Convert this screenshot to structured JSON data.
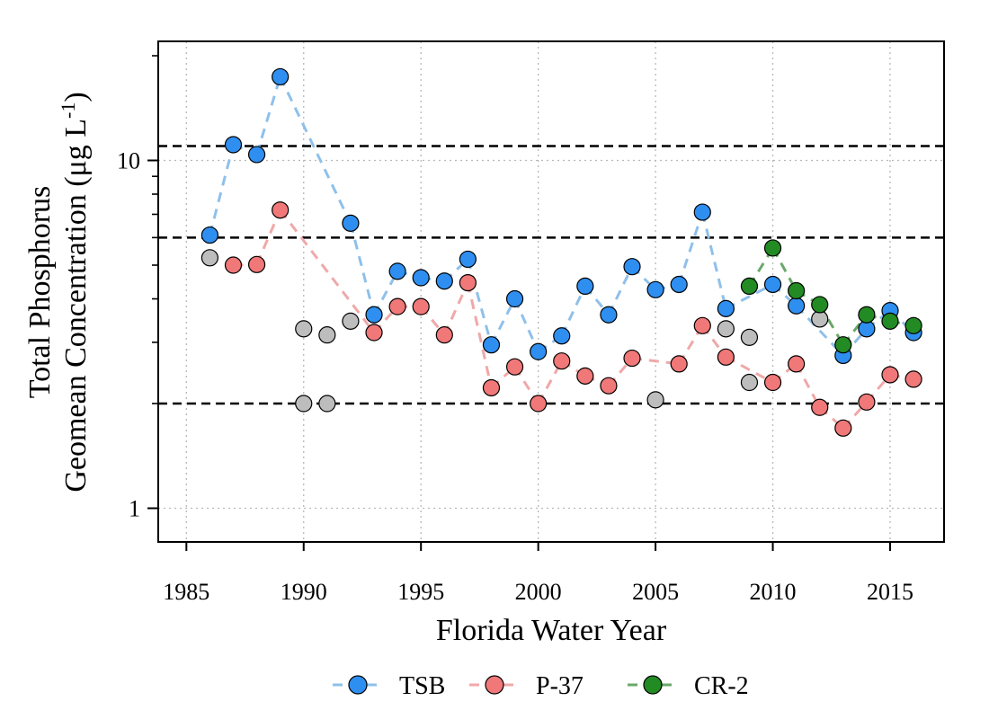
{
  "chart_data": {
    "type": "scatter",
    "x_axis": {
      "label": "Florida Water Year",
      "range": [
        1983.8,
        2017.3
      ],
      "ticks": [
        1985,
        1990,
        1995,
        2000,
        2005,
        2010,
        2015
      ],
      "tick_labels": [
        "1985",
        "1990",
        "1995",
        "2000",
        "2005",
        "2010",
        "2015"
      ]
    },
    "y_axis": {
      "label_line1": "Total Phosphorus",
      "label_line2_main": "Geomean Concentration (μg L",
      "label_line2_sup": "-1",
      "label_line2_end": ")",
      "scale": "log",
      "range": [
        0.8,
        22
      ],
      "ticks": [
        1,
        10
      ],
      "tick_labels": [
        "1",
        "10"
      ],
      "minor_ticks": [
        2,
        3,
        4,
        5,
        6,
        7,
        8,
        9,
        20
      ]
    },
    "grid": true,
    "reference_lines": [
      11,
      6,
      2
    ],
    "legend": {
      "placement": "bottom"
    },
    "series": [
      {
        "name": "TSB",
        "color": "#2f8ff0",
        "line_color": "#8fc0ea",
        "points": [
          {
            "x": 1986,
            "y": 6.1
          },
          {
            "x": 1987,
            "y": 11.1
          },
          {
            "x": 1988,
            "y": 10.4
          },
          {
            "x": 1989,
            "y": 17.4
          },
          {
            "x": 1992,
            "y": 6.6
          },
          {
            "x": 1993,
            "y": 3.6
          },
          {
            "x": 1994,
            "y": 4.8
          },
          {
            "x": 1995,
            "y": 4.6
          },
          {
            "x": 1996,
            "y": 4.5
          },
          {
            "x": 1997,
            "y": 5.2
          },
          {
            "x": 1998,
            "y": 2.95
          },
          {
            "x": 1999,
            "y": 4.0
          },
          {
            "x": 2000,
            "y": 2.82
          },
          {
            "x": 2001,
            "y": 3.13
          },
          {
            "x": 2002,
            "y": 4.35
          },
          {
            "x": 2003,
            "y": 3.6
          },
          {
            "x": 2004,
            "y": 4.95
          },
          {
            "x": 2005,
            "y": 4.25
          },
          {
            "x": 2006,
            "y": 4.4
          },
          {
            "x": 2007,
            "y": 7.1
          },
          {
            "x": 2008,
            "y": 3.75
          },
          {
            "x": 2010,
            "y": 4.4
          },
          {
            "x": 2011,
            "y": 3.82
          },
          {
            "x": 2013,
            "y": 2.75
          },
          {
            "x": 2014,
            "y": 3.28
          },
          {
            "x": 2015,
            "y": 3.7
          },
          {
            "x": 2016,
            "y": 3.2
          }
        ]
      },
      {
        "name": "P-37",
        "color": "#f07878",
        "line_color": "#f0a8a8",
        "points": [
          {
            "x": 1987,
            "y": 5.0
          },
          {
            "x": 1988,
            "y": 5.02
          },
          {
            "x": 1989,
            "y": 7.2
          },
          {
            "x": 1993,
            "y": 3.2
          },
          {
            "x": 1994,
            "y": 3.8
          },
          {
            "x": 1995,
            "y": 3.8
          },
          {
            "x": 1996,
            "y": 3.15
          },
          {
            "x": 1997,
            "y": 4.45
          },
          {
            "x": 1998,
            "y": 2.22
          },
          {
            "x": 1999,
            "y": 2.55
          },
          {
            "x": 2000,
            "y": 2.0
          },
          {
            "x": 2001,
            "y": 2.65
          },
          {
            "x": 2002,
            "y": 2.4
          },
          {
            "x": 2003,
            "y": 2.25
          },
          {
            "x": 2004,
            "y": 2.7
          },
          {
            "x": 2006,
            "y": 2.6
          },
          {
            "x": 2007,
            "y": 3.35
          },
          {
            "x": 2008,
            "y": 2.72
          },
          {
            "x": 2010,
            "y": 2.3
          },
          {
            "x": 2011,
            "y": 2.6
          },
          {
            "x": 2012,
            "y": 1.95
          },
          {
            "x": 2013,
            "y": 1.7
          },
          {
            "x": 2014,
            "y": 2.02
          },
          {
            "x": 2015,
            "y": 2.42
          },
          {
            "x": 2016,
            "y": 2.35
          }
        ]
      },
      {
        "name": "CR-2",
        "color": "#238b23",
        "line_color": "#6aa86a",
        "points": [
          {
            "x": 2009,
            "y": 4.35
          },
          {
            "x": 2010,
            "y": 5.6
          },
          {
            "x": 2011,
            "y": 4.22
          },
          {
            "x": 2012,
            "y": 3.85
          },
          {
            "x": 2013,
            "y": 2.95
          },
          {
            "x": 2014,
            "y": 3.6
          },
          {
            "x": 2015,
            "y": 3.45
          },
          {
            "x": 2016,
            "y": 3.35
          }
        ]
      }
    ],
    "grey_points": {
      "color": "#bdbdbd",
      "points": [
        {
          "x": 1986,
          "y": 5.25
        },
        {
          "x": 1990,
          "y": 3.28
        },
        {
          "x": 1990,
          "y": 2.0
        },
        {
          "x": 1991,
          "y": 3.15
        },
        {
          "x": 1991,
          "y": 2.0
        },
        {
          "x": 1992,
          "y": 3.45
        },
        {
          "x": 2005,
          "y": 2.05
        },
        {
          "x": 2008,
          "y": 3.28
        },
        {
          "x": 2009,
          "y": 3.1
        },
        {
          "x": 2009,
          "y": 2.3
        },
        {
          "x": 2012,
          "y": 3.5
        }
      ]
    }
  }
}
